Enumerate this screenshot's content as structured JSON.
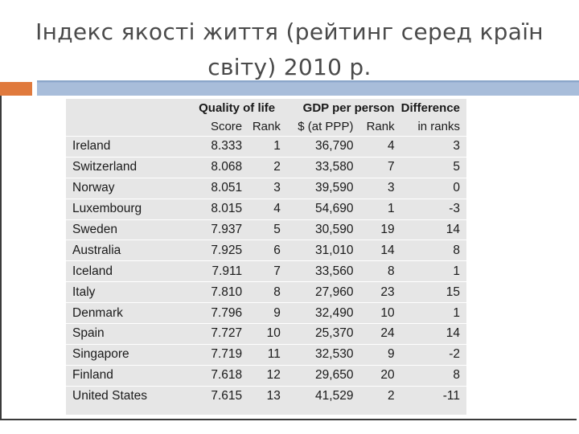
{
  "slide": {
    "title_line1": "Індекс якості життя (рейтинг серед країн",
    "title_line2": "світу) 2010 р."
  },
  "colors": {
    "accent_orange": "#e07a3d",
    "accent_blue": "#9fb6d6",
    "table_bg": "#e6e6e6"
  },
  "table": {
    "group_headers": {
      "quality": "Quality of life",
      "gdp": "GDP per person",
      "difference": "Difference"
    },
    "sub_headers": {
      "score": "Score",
      "q_rank": "Rank",
      "gdp_unit": "$ (at PPP)",
      "g_rank": "Rank",
      "in_ranks": "in ranks"
    },
    "rows": [
      {
        "country": "Ireland",
        "score": "8.333",
        "q_rank": "1",
        "gdp": "36,790",
        "g_rank": "4",
        "diff": "3"
      },
      {
        "country": "Switzerland",
        "score": "8.068",
        "q_rank": "2",
        "gdp": "33,580",
        "g_rank": "7",
        "diff": "5"
      },
      {
        "country": "Norway",
        "score": "8.051",
        "q_rank": "3",
        "gdp": "39,590",
        "g_rank": "3",
        "diff": "0"
      },
      {
        "country": "Luxembourg",
        "score": "8.015",
        "q_rank": "4",
        "gdp": "54,690",
        "g_rank": "1",
        "diff": "-3"
      },
      {
        "country": "Sweden",
        "score": "7.937",
        "q_rank": "5",
        "gdp": "30,590",
        "g_rank": "19",
        "diff": "14"
      },
      {
        "country": "Australia",
        "score": "7.925",
        "q_rank": "6",
        "gdp": "31,010",
        "g_rank": "14",
        "diff": "8"
      },
      {
        "country": "Iceland",
        "score": "7.911",
        "q_rank": "7",
        "gdp": "33,560",
        "g_rank": "8",
        "diff": "1"
      },
      {
        "country": "Italy",
        "score": "7.810",
        "q_rank": "8",
        "gdp": "27,960",
        "g_rank": "23",
        "diff": "15"
      },
      {
        "country": "Denmark",
        "score": "7.796",
        "q_rank": "9",
        "gdp": "32,490",
        "g_rank": "10",
        "diff": "1"
      },
      {
        "country": "Spain",
        "score": "7.727",
        "q_rank": "10",
        "gdp": "25,370",
        "g_rank": "24",
        "diff": "14"
      },
      {
        "country": "Singapore",
        "score": "7.719",
        "q_rank": "11",
        "gdp": "32,530",
        "g_rank": "9",
        "diff": "-2"
      },
      {
        "country": "Finland",
        "score": "7.618",
        "q_rank": "12",
        "gdp": "29,650",
        "g_rank": "20",
        "diff": "8"
      },
      {
        "country": "United States",
        "score": "7.615",
        "q_rank": "13",
        "gdp": "41,529",
        "g_rank": "2",
        "diff": "-11"
      }
    ]
  }
}
